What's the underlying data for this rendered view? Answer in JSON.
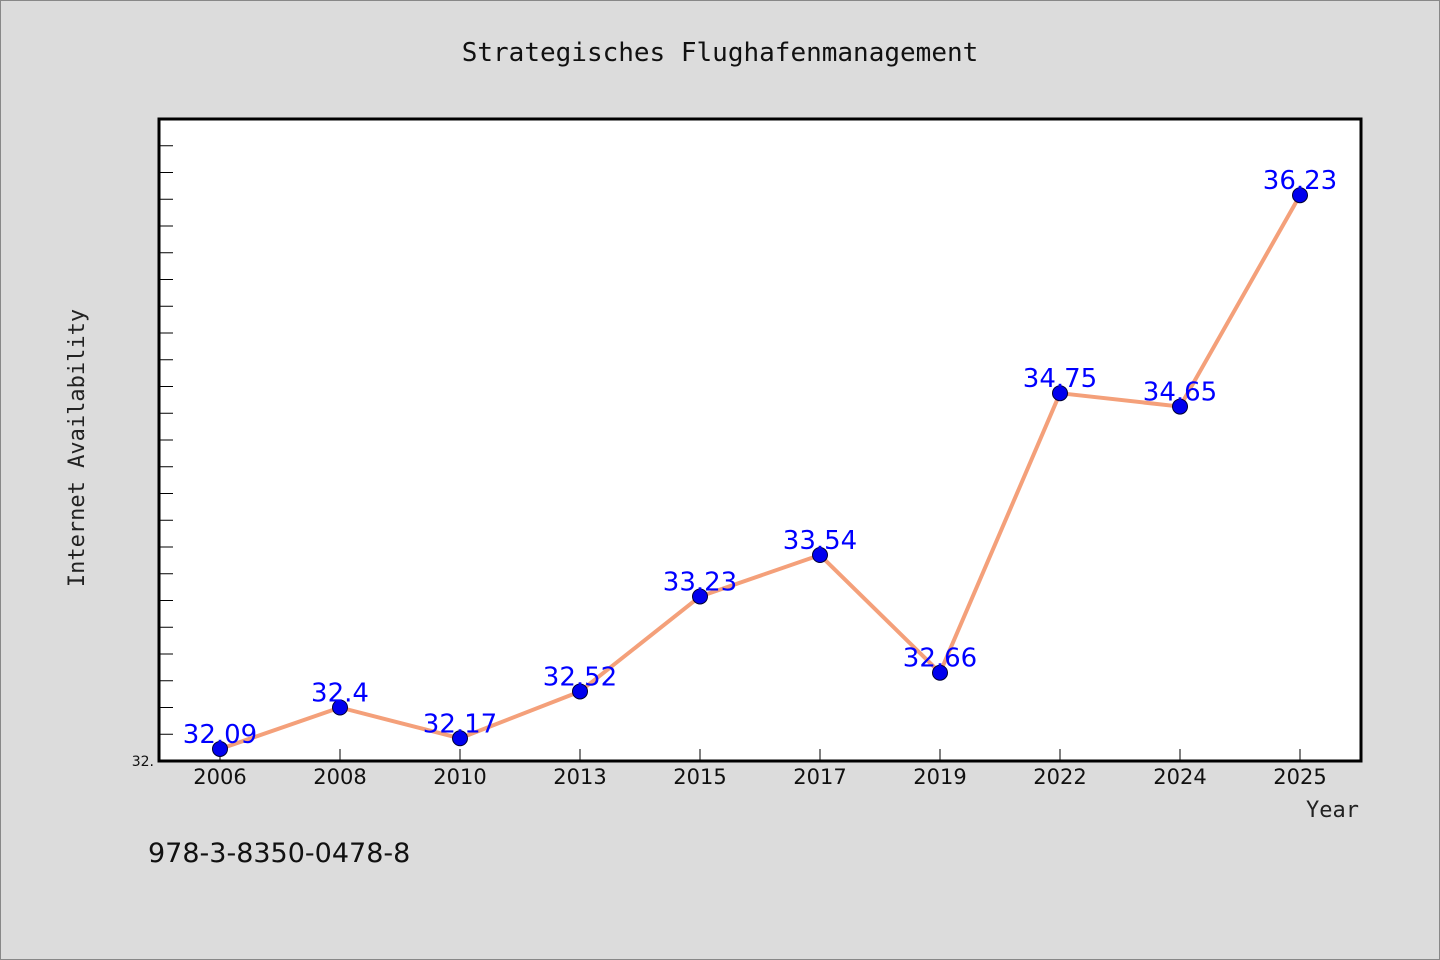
{
  "chart_data": {
    "type": "line",
    "title": "Strategisches Flughafenmanagement",
    "xlabel": "Year",
    "ylabel": "Internet Availability",
    "categories": [
      "2006",
      "2008",
      "2010",
      "2013",
      "2015",
      "2017",
      "2019",
      "2022",
      "2024",
      "2025"
    ],
    "series": [
      {
        "values": [
          32.09,
          32.4,
          32.17,
          32.52,
          33.23,
          33.54,
          32.66,
          34.75,
          34.65,
          36.23
        ],
        "labels": [
          "32.09",
          "32.4",
          "32.17",
          "32.52",
          "33.23",
          "33.54",
          "32.66",
          "34.75",
          "34.65",
          "36.23"
        ]
      }
    ],
    "ylim": [
      32.0,
      36.8
    ],
    "yticks": [
      "32."
    ],
    "grid": false,
    "legend": "none"
  },
  "footer": {
    "isbn": "978-3-8350-0478-8"
  },
  "colors": {
    "background": "#dcdcdc",
    "plot_background": "#ffffff",
    "line": "#f4a07a",
    "marker": "#0000ee",
    "label": "#0000ff",
    "axis": "#000000"
  }
}
